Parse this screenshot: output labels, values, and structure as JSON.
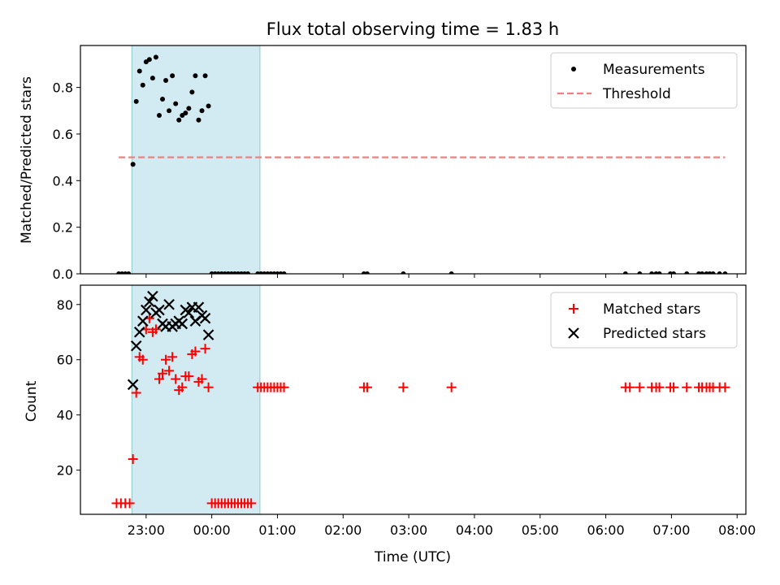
{
  "title": "Flux total observing time = 1.83 h",
  "colors": {
    "measurement": "#000000",
    "threshold": "#f08080",
    "matched": "#ff0000",
    "predicted": "#000000",
    "observing_window": "#add8e6"
  },
  "chart_data": [
    {
      "type": "scatter",
      "panel": "top",
      "title": "Flux total observing time = 1.83 h",
      "xlabel": "",
      "ylabel": "Matched/Predicted stars",
      "xlim": [
        "22:00",
        "08:08"
      ],
      "ylim": [
        0,
        0.98
      ],
      "x_ticks": [
        "23:00",
        "00:00",
        "01:00",
        "02:00",
        "03:00",
        "04:00",
        "05:00",
        "06:00",
        "07:00",
        "08:00"
      ],
      "y_ticks": [
        "0.0",
        "0.2",
        "0.4",
        "0.6",
        "0.8"
      ],
      "observing_window": [
        "22:47",
        "00:44"
      ],
      "legend_position": "top-right",
      "series": [
        {
          "name": "Measurements",
          "marker": "dot",
          "x": [
            "22:35",
            "22:38",
            "22:41",
            "22:44",
            "22:48",
            "22:51",
            "22:54",
            "22:57",
            "23:00",
            "23:03",
            "23:06",
            "23:09",
            "23:12",
            "23:15",
            "23:18",
            "23:21",
            "23:24",
            "23:27",
            "23:30",
            "23:33",
            "23:36",
            "23:39",
            "23:42",
            "23:45",
            "23:48",
            "23:51",
            "23:54",
            "23:57",
            "00:00",
            "00:03",
            "00:06",
            "00:09",
            "00:12",
            "00:15",
            "00:18",
            "00:21",
            "00:24",
            "00:27",
            "00:30",
            "00:33",
            "00:42",
            "00:45",
            "00:48",
            "00:51",
            "00:54",
            "00:57",
            "01:00",
            "01:03",
            "01:06",
            "02:19",
            "02:22",
            "02:55",
            "03:39",
            "06:18",
            "06:31",
            "06:42",
            "06:46",
            "06:49",
            "06:59",
            "07:02",
            "07:14",
            "07:25",
            "07:28",
            "07:32",
            "07:35",
            "07:38",
            "07:44",
            "07:49"
          ],
          "y": [
            0,
            0,
            0,
            0,
            0.47,
            0.74,
            0.87,
            0.81,
            0.91,
            0.92,
            0.84,
            0.93,
            0.68,
            0.75,
            0.83,
            0.7,
            0.85,
            0.73,
            0.66,
            0.68,
            0.69,
            0.71,
            0.78,
            0.85,
            0.66,
            0.7,
            0.85,
            0.72,
            0,
            0,
            0,
            0,
            0,
            0,
            0,
            0,
            0,
            0,
            0,
            0,
            0,
            0,
            0,
            0,
            0,
            0,
            0,
            0,
            0,
            0,
            0,
            0,
            0,
            0,
            0,
            0,
            0,
            0,
            0,
            0,
            0,
            0,
            0,
            0,
            0,
            0,
            0,
            0
          ]
        },
        {
          "name": "Threshold",
          "style": "dashed",
          "x": [
            "22:35",
            "07:49"
          ],
          "y": [
            0.5,
            0.5
          ]
        }
      ]
    },
    {
      "type": "scatter",
      "panel": "bottom",
      "xlabel": "Time (UTC)",
      "ylabel": "Count",
      "xlim": [
        "22:00",
        "08:08"
      ],
      "ylim": [
        4,
        87
      ],
      "x_ticks": [
        "23:00",
        "00:00",
        "01:00",
        "02:00",
        "03:00",
        "04:00",
        "05:00",
        "06:00",
        "07:00",
        "08:00"
      ],
      "y_ticks": [
        "20",
        "40",
        "60",
        "80"
      ],
      "observing_window": [
        "22:47",
        "00:44"
      ],
      "legend_position": "top-right",
      "series": [
        {
          "name": "Matched stars",
          "marker": "plus",
          "x": [
            "22:33",
            "22:37",
            "22:41",
            "22:45",
            "22:48",
            "22:51",
            "22:54",
            "22:57",
            "23:00",
            "23:03",
            "23:06",
            "23:09",
            "23:12",
            "23:15",
            "23:18",
            "23:21",
            "23:24",
            "23:27",
            "23:30",
            "23:33",
            "23:36",
            "23:39",
            "23:42",
            "23:45",
            "23:48",
            "23:51",
            "23:54",
            "23:57",
            "00:00",
            "00:03",
            "00:06",
            "00:09",
            "00:12",
            "00:15",
            "00:18",
            "00:21",
            "00:24",
            "00:27",
            "00:30",
            "00:33",
            "00:36",
            "00:42",
            "00:45",
            "00:48",
            "00:51",
            "00:54",
            "00:57",
            "01:00",
            "01:03",
            "01:06",
            "02:19",
            "02:22",
            "02:55",
            "03:39",
            "06:18",
            "06:22",
            "06:31",
            "06:42",
            "06:46",
            "06:49",
            "06:59",
            "07:02",
            "07:14",
            "07:25",
            "07:28",
            "07:32",
            "07:35",
            "07:38",
            "07:44",
            "07:49"
          ],
          "y": [
            8,
            8,
            8,
            8,
            24,
            48,
            61,
            60,
            71,
            75,
            70,
            71,
            53,
            55,
            60,
            56,
            61,
            53,
            49,
            50,
            54,
            54,
            62,
            63,
            52,
            53,
            64,
            50,
            8,
            8,
            8,
            8,
            8,
            8,
            8,
            8,
            8,
            8,
            8,
            8,
            8,
            50,
            50,
            50,
            50,
            50,
            50,
            50,
            50,
            50,
            50,
            50,
            50,
            50,
            50,
            50,
            50,
            50,
            50,
            50,
            50,
            50,
            50,
            50,
            50,
            50,
            50,
            50,
            50,
            50
          ]
        },
        {
          "name": "Predicted stars",
          "marker": "x",
          "x": [
            "22:48",
            "22:51",
            "22:54",
            "22:57",
            "23:00",
            "23:03",
            "23:06",
            "23:09",
            "23:12",
            "23:15",
            "23:18",
            "23:21",
            "23:24",
            "23:27",
            "23:30",
            "23:33",
            "23:36",
            "23:39",
            "23:42",
            "23:45",
            "23:48",
            "23:51",
            "23:54",
            "23:57"
          ],
          "y": [
            51,
            65,
            70,
            74,
            78,
            81,
            83,
            77,
            78,
            73,
            72,
            80,
            72,
            73,
            74,
            73,
            78,
            77,
            79,
            74,
            79,
            76,
            75,
            69
          ]
        }
      ]
    }
  ]
}
